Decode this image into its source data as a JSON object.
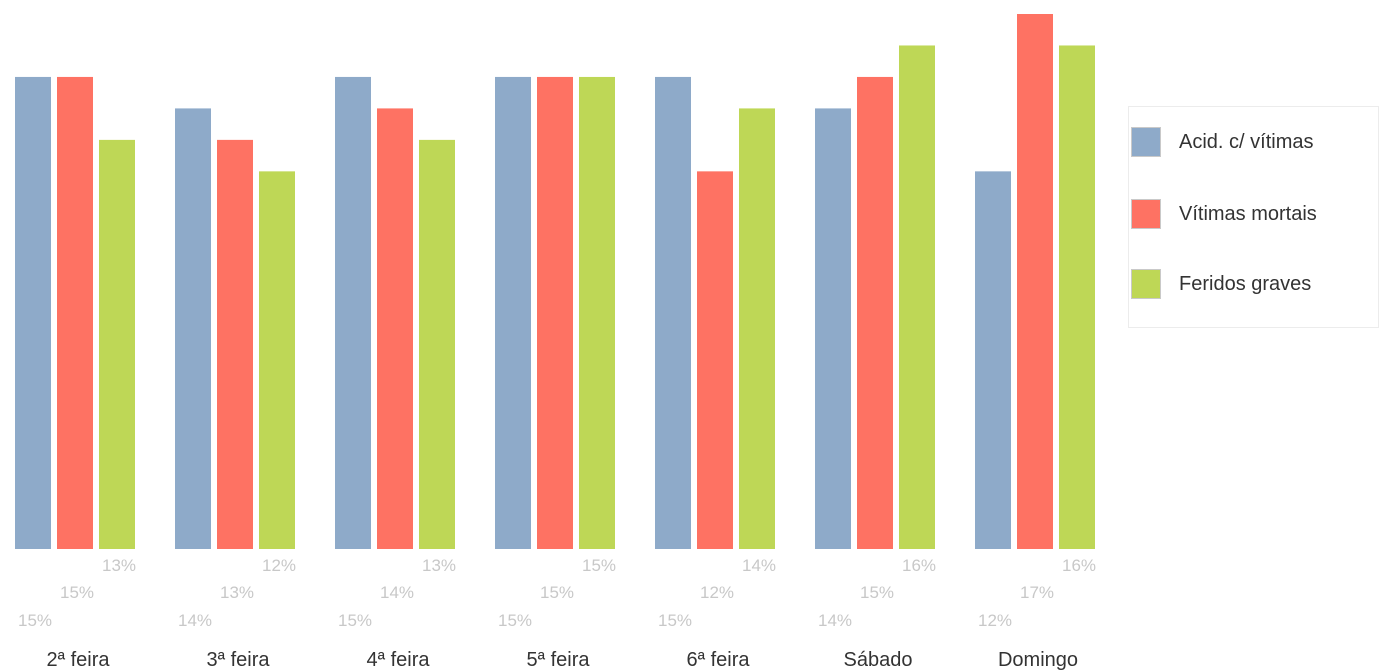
{
  "chart_data": {
    "type": "bar",
    "categories": [
      "2ª feira",
      "3ª feira",
      "4ª feira",
      "5ª feira",
      "6ª feira",
      "Sábado",
      "Domingo"
    ],
    "series": [
      {
        "name": "Acid. c/ vítimas",
        "color": "#8eaac9",
        "values": [
          15,
          14,
          15,
          15,
          15,
          14,
          12
        ],
        "labels": [
          "15%",
          "14%",
          "15%",
          "15%",
          "15%",
          "14%",
          "12%"
        ]
      },
      {
        "name": "Vítimas mortais",
        "color": "#fe7263",
        "values": [
          15,
          13,
          14,
          15,
          12,
          15,
          17
        ],
        "labels": [
          "15%",
          "13%",
          "14%",
          "15%",
          "12%",
          "15%",
          "17%"
        ]
      },
      {
        "name": "Feridos graves",
        "color": "#bed756",
        "values": [
          13,
          12,
          13,
          15,
          14,
          16,
          16
        ],
        "labels": [
          "13%",
          "12%",
          "13%",
          "15%",
          "14%",
          "16%",
          "16%"
        ]
      }
    ],
    "legend_position": "right",
    "grid": false
  },
  "legend": {
    "items": [
      {
        "label": "Acid. c/ vítimas",
        "color": "#8eaac9"
      },
      {
        "label": "Vítimas mortais",
        "color": "#fe7263"
      },
      {
        "label": "Feridos graves",
        "color": "#bed756"
      }
    ]
  }
}
